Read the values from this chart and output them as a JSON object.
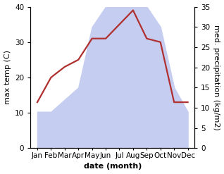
{
  "months": [
    "Jan",
    "Feb",
    "Mar",
    "Apr",
    "May",
    "Jun",
    "Jul",
    "Aug",
    "Sep",
    "Oct",
    "Nov",
    "Dec"
  ],
  "temperature": [
    13,
    20,
    23,
    25,
    31,
    31,
    35,
    39,
    31,
    30,
    13,
    13
  ],
  "precipitation": [
    9,
    9,
    12,
    15,
    30,
    35,
    40,
    40,
    35,
    30,
    15,
    9
  ],
  "temp_color": "#b03030",
  "precip_fill_color": "#c5cdf0",
  "precip_edge_color": "#c5cdf0",
  "background_color": "#ffffff",
  "xlabel": "date (month)",
  "ylabel_left": "max temp (C)",
  "ylabel_right": "med. precipitation (kg/m2)",
  "ylim_left": [
    0,
    40
  ],
  "ylim_right": [
    0,
    35
  ],
  "yticks_left": [
    0,
    10,
    20,
    30,
    40
  ],
  "yticks_right": [
    0,
    5,
    10,
    15,
    20,
    25,
    30,
    35
  ],
  "temp_linewidth": 1.6,
  "xlabel_fontsize": 8,
  "ylabel_fontsize": 8,
  "tick_fontsize": 7.5
}
